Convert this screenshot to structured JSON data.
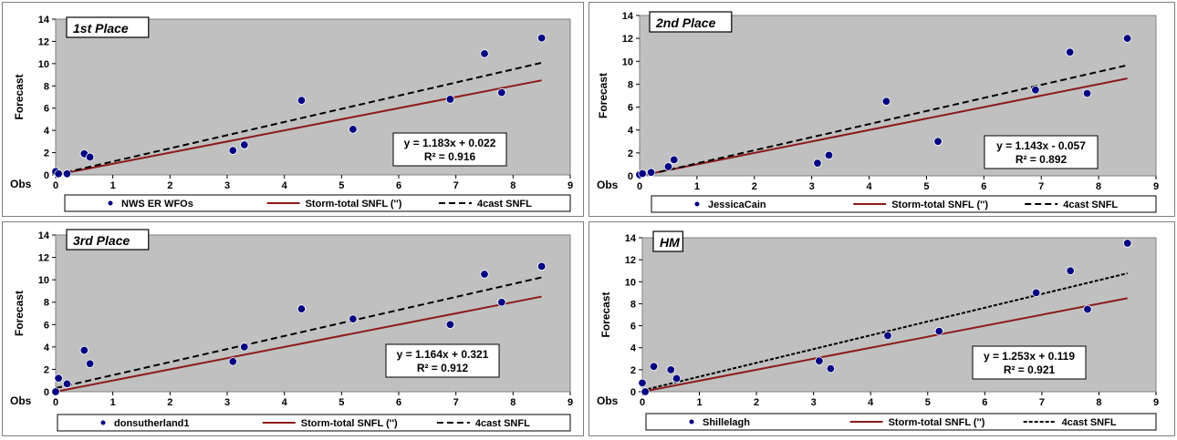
{
  "chart_data": [
    {
      "type": "scatter",
      "title": "1st Place",
      "xlabel": "Obs",
      "ylabel": "Forecast",
      "xlim": [
        0,
        9
      ],
      "ylim": [
        0,
        14
      ],
      "xticks": [
        "0",
        "1",
        "2",
        "3",
        "4",
        "5",
        "6",
        "7",
        "8",
        "9"
      ],
      "yticks": [
        "0",
        "2",
        "4",
        "6",
        "8",
        "10",
        "12",
        "14"
      ],
      "series": [
        {
          "name": "NWS ER WFOs",
          "kind": "points",
          "color": "#000080",
          "x": [
            0.0,
            0.05,
            0.2,
            0.5,
            0.6,
            3.1,
            3.3,
            4.3,
            5.2,
            6.9,
            7.5,
            7.8,
            8.5
          ],
          "y": [
            0.3,
            0.1,
            0.1,
            1.9,
            1.6,
            2.2,
            2.7,
            6.7,
            4.1,
            6.8,
            10.9,
            7.4,
            12.3
          ]
        },
        {
          "name": "Storm-total SNFL ('')",
          "kind": "line",
          "color": "#8b1a1a",
          "dash": false,
          "slope": 1.0,
          "intercept": 0.0
        },
        {
          "name": "4cast SNFL",
          "kind": "line",
          "color": "#000000",
          "dash": true,
          "slope": 1.183,
          "intercept": 0.022
        }
      ],
      "equation": "y = 1.183x + 0.022",
      "r2": "R² = 0.916",
      "grid": false,
      "legend": "bottom"
    },
    {
      "type": "scatter",
      "title": "2nd Place",
      "xlabel": "Obs",
      "ylabel": "Forecast",
      "xlim": [
        0,
        9
      ],
      "ylim": [
        0,
        14
      ],
      "xticks": [
        "0",
        "1",
        "2",
        "3",
        "4",
        "5",
        "6",
        "7",
        "8",
        "9"
      ],
      "yticks": [
        "0",
        "2",
        "4",
        "6",
        "8",
        "10",
        "12",
        "14"
      ],
      "series": [
        {
          "name": "JessicaCain",
          "kind": "points",
          "color": "#000080",
          "x": [
            0.0,
            0.05,
            0.2,
            0.5,
            0.6,
            3.1,
            3.3,
            4.3,
            5.2,
            6.9,
            7.5,
            7.8,
            8.5
          ],
          "y": [
            0.1,
            0.2,
            0.3,
            0.8,
            1.4,
            1.1,
            1.8,
            6.5,
            3.0,
            7.5,
            10.8,
            7.2,
            12.0
          ]
        },
        {
          "name": "Storm-total SNFL ('')",
          "kind": "line",
          "color": "#8b1a1a",
          "dash": false,
          "slope": 1.0,
          "intercept": 0.0
        },
        {
          "name": "4cast SNFL",
          "kind": "line",
          "color": "#000000",
          "dash": true,
          "slope": 1.143,
          "intercept": -0.057
        }
      ],
      "equation": "y = 1.143x - 0.057",
      "r2": "R² = 0.892",
      "grid": false,
      "legend": "bottom"
    },
    {
      "type": "scatter",
      "title": "3rd Place",
      "xlabel": "Obs",
      "ylabel": "Forecast",
      "xlim": [
        0,
        9
      ],
      "ylim": [
        0,
        14
      ],
      "xticks": [
        "0",
        "1",
        "2",
        "3",
        "4",
        "5",
        "6",
        "7",
        "8",
        "9"
      ],
      "yticks": [
        "0",
        "2",
        "4",
        "6",
        "8",
        "10",
        "12",
        "14"
      ],
      "series": [
        {
          "name": "donsutherland1",
          "kind": "points",
          "color": "#000080",
          "x": [
            0.0,
            0.05,
            0.2,
            0.5,
            0.6,
            3.1,
            3.3,
            4.3,
            5.2,
            6.9,
            7.5,
            7.8,
            8.5
          ],
          "y": [
            0.0,
            1.2,
            0.7,
            3.7,
            2.5,
            2.7,
            4.0,
            7.4,
            6.5,
            6.0,
            10.5,
            8.0,
            11.2
          ]
        },
        {
          "name": "Storm-total SNFL ('')",
          "kind": "line",
          "color": "#8b1a1a",
          "dash": false,
          "slope": 1.0,
          "intercept": 0.0
        },
        {
          "name": "4cast SNFL",
          "kind": "line",
          "color": "#000000",
          "dash": true,
          "slope": 1.164,
          "intercept": 0.321
        }
      ],
      "equation": "y = 1.164x + 0.321",
      "r2": "R² = 0.912",
      "grid": false,
      "legend": "bottom"
    },
    {
      "type": "scatter",
      "title": "HM",
      "xlabel": "Obs",
      "ylabel": "Forecast",
      "xlim": [
        0,
        9
      ],
      "ylim": [
        0,
        14
      ],
      "xticks": [
        "0",
        "1",
        "2",
        "3",
        "4",
        "5",
        "6",
        "7",
        "8",
        "9"
      ],
      "yticks": [
        "0",
        "2",
        "4",
        "6",
        "8",
        "10",
        "12",
        "14"
      ],
      "series": [
        {
          "name": "Shillelagh",
          "kind": "points",
          "color": "#000080",
          "x": [
            0.0,
            0.05,
            0.2,
            0.5,
            0.6,
            3.1,
            3.3,
            4.3,
            5.2,
            6.9,
            7.5,
            7.8,
            8.5
          ],
          "y": [
            0.8,
            0.0,
            2.3,
            2.0,
            1.2,
            2.8,
            2.1,
            5.1,
            5.5,
            9.0,
            11.0,
            7.5,
            13.5
          ]
        },
        {
          "name": "Storm-total SNFL ('')",
          "kind": "line",
          "color": "#8b1a1a",
          "dash": false,
          "slope": 1.0,
          "intercept": 0.0
        },
        {
          "name": "4cast SNFL",
          "kind": "line",
          "color": "#000000",
          "dash": "fine",
          "slope": 1.253,
          "intercept": 0.119
        }
      ],
      "equation": "y = 1.253x + 0.119",
      "r2": "R² = 0.921",
      "grid": false,
      "legend": "bottom"
    }
  ],
  "colors": {
    "plot_background": "#c0c0c0",
    "points": "#000080",
    "obs_line": "#8b1a1a",
    "forecast_line": "#000000"
  }
}
